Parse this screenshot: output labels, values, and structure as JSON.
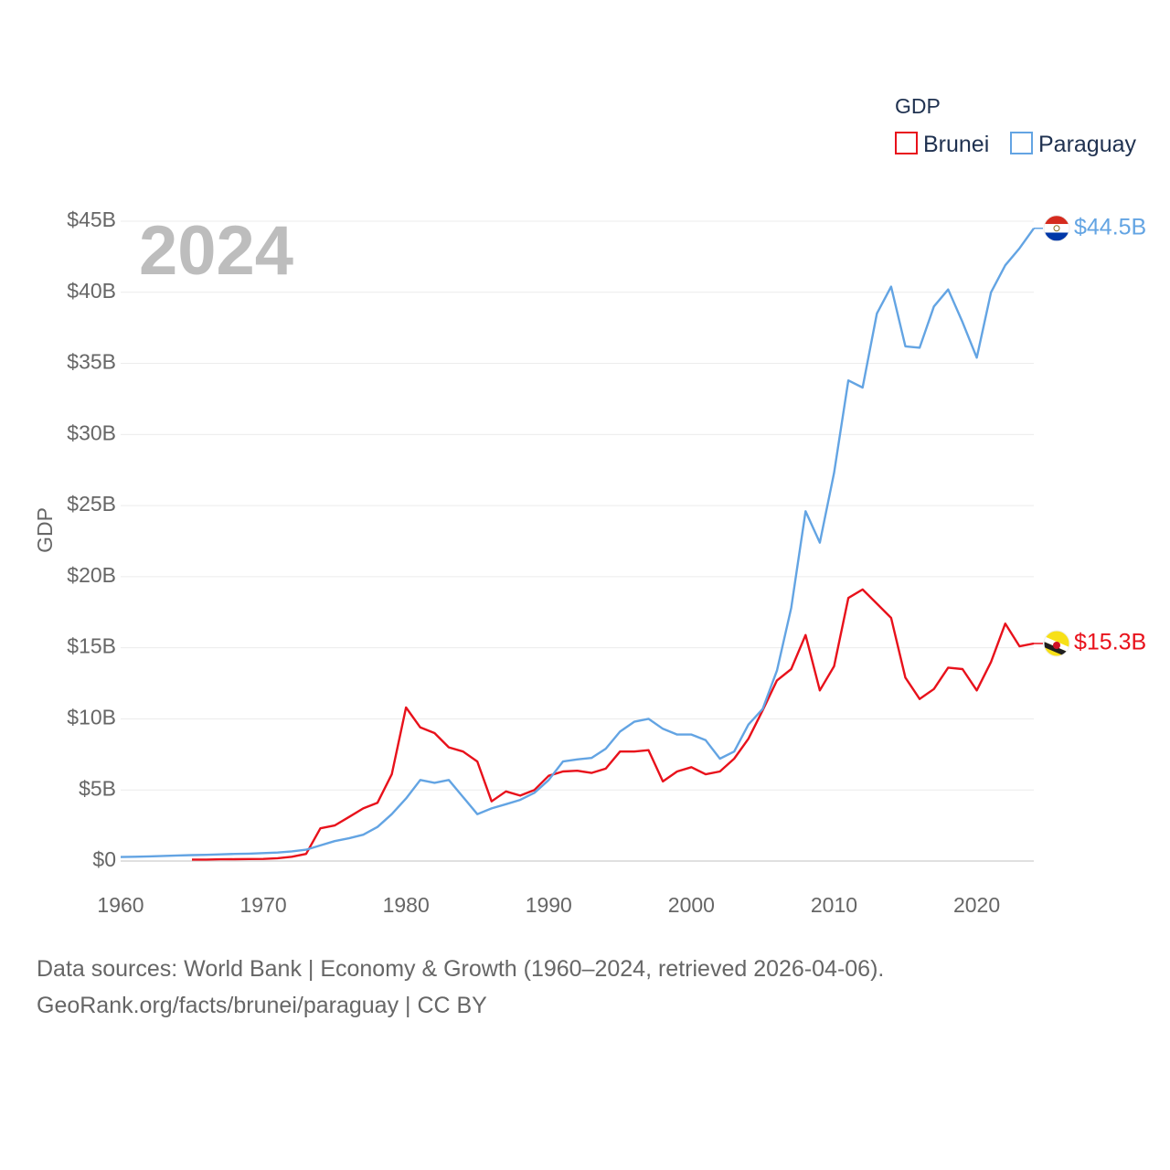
{
  "chart_data": {
    "type": "line",
    "title": "",
    "highlight_year": "2024",
    "xlabel": "",
    "ylabel": "GDP",
    "xlim": [
      1960,
      2024
    ],
    "ylim": [
      0,
      45
    ],
    "x_ticks": [
      "1960",
      "1970",
      "1980",
      "1990",
      "2000",
      "2010",
      "2020"
    ],
    "x_tick_values": [
      1960,
      1970,
      1980,
      1990,
      2000,
      2010,
      2020
    ],
    "y_ticks": [
      "$0",
      "$5B",
      "$10B",
      "$15B",
      "$20B",
      "$25B",
      "$30B",
      "$35B",
      "$40B",
      "$45B"
    ],
    "y_tick_values": [
      0,
      5,
      10,
      15,
      20,
      25,
      30,
      35,
      40,
      45
    ],
    "units": "billions USD",
    "grid": true,
    "legend": {
      "title": "GDP",
      "position": "top-right",
      "entries": [
        "Brunei",
        "Paraguay"
      ]
    },
    "series": [
      {
        "name": "Brunei",
        "color": "#e8111b",
        "end_label": "$15.3B",
        "flag": "brunei-flag-icon",
        "x": [
          1965,
          1966,
          1967,
          1968,
          1969,
          1970,
          1971,
          1972,
          1973,
          1974,
          1975,
          1976,
          1977,
          1978,
          1979,
          1980,
          1981,
          1982,
          1983,
          1984,
          1985,
          1986,
          1987,
          1988,
          1989,
          1990,
          1991,
          1992,
          1993,
          1994,
          1995,
          1996,
          1997,
          1998,
          1999,
          2000,
          2001,
          2002,
          2003,
          2004,
          2005,
          2006,
          2007,
          2008,
          2009,
          2010,
          2011,
          2012,
          2013,
          2014,
          2015,
          2016,
          2017,
          2018,
          2019,
          2020,
          2021,
          2022,
          2023,
          2024
        ],
        "values": [
          0.1,
          0.1,
          0.12,
          0.13,
          0.14,
          0.15,
          0.2,
          0.3,
          0.5,
          2.3,
          2.5,
          3.1,
          3.7,
          4.1,
          6.1,
          10.8,
          9.4,
          9.0,
          8.0,
          7.7,
          7.0,
          4.2,
          4.9,
          4.6,
          5.0,
          6.0,
          6.3,
          6.35,
          6.2,
          6.5,
          7.7,
          7.7,
          7.8,
          5.6,
          6.3,
          6.6,
          6.1,
          6.3,
          7.2,
          8.6,
          10.6,
          12.7,
          13.5,
          15.9,
          12.0,
          13.7,
          18.5,
          19.1,
          18.1,
          17.1,
          12.9,
          11.4,
          12.1,
          13.6,
          13.5,
          12.0,
          14.0,
          16.7,
          15.1,
          15.3
        ]
      },
      {
        "name": "Paraguay",
        "color": "#63a4e3",
        "end_label": "$44.5B",
        "flag": "paraguay-flag-icon",
        "x": [
          1960,
          1961,
          1962,
          1963,
          1964,
          1965,
          1966,
          1967,
          1968,
          1969,
          1970,
          1971,
          1972,
          1973,
          1974,
          1975,
          1976,
          1977,
          1978,
          1979,
          1980,
          1981,
          1982,
          1983,
          1984,
          1985,
          1986,
          1987,
          1988,
          1989,
          1990,
          1991,
          1992,
          1993,
          1994,
          1995,
          1996,
          1997,
          1998,
          1999,
          2000,
          2001,
          2002,
          2003,
          2004,
          2005,
          2006,
          2007,
          2008,
          2009,
          2010,
          2011,
          2012,
          2013,
          2014,
          2015,
          2016,
          2017,
          2018,
          2019,
          2020,
          2021,
          2022,
          2023,
          2024
        ],
        "values": [
          0.28,
          0.3,
          0.33,
          0.36,
          0.39,
          0.42,
          0.44,
          0.47,
          0.5,
          0.52,
          0.56,
          0.6,
          0.68,
          0.8,
          1.1,
          1.4,
          1.6,
          1.85,
          2.4,
          3.3,
          4.4,
          5.7,
          5.5,
          5.7,
          4.5,
          3.3,
          3.7,
          4.0,
          4.3,
          4.8,
          5.7,
          7.0,
          7.15,
          7.25,
          7.9,
          9.1,
          9.8,
          10.0,
          9.3,
          8.9,
          8.9,
          8.5,
          7.2,
          7.7,
          9.6,
          10.7,
          13.4,
          17.8,
          24.6,
          22.4,
          27.3,
          33.8,
          33.3,
          38.5,
          40.4,
          36.2,
          36.1,
          39.0,
          40.2,
          37.9,
          35.4,
          40.0,
          41.9,
          43.1,
          44.5
        ]
      }
    ]
  },
  "footer": {
    "line1": "Data sources: World Bank | Economy & Growth (1960–2024, retrieved 2026-04-06).",
    "line2": "GeoRank.org/facts/brunei/paraguay | CC BY"
  }
}
